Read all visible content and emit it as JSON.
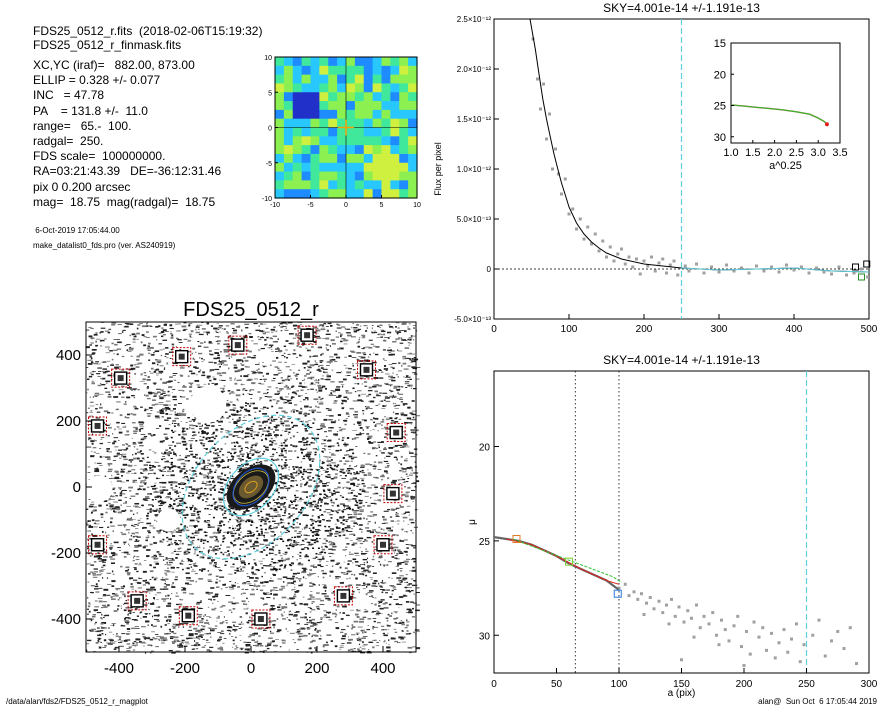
{
  "header": {
    "file_line": "FDS25_0512_r.fits  (2018-02-06T15:19:32)",
    "mask_line": "FDS25_0512_r_finmask.fits",
    "params": [
      "XC,YC (iraf)=   882.00, 873.00",
      "ELLIP = 0.328 +/- 0.077",
      "INC   = 47.78",
      "PA    = 131.8 +/-  11.0",
      "range=   65.-  100.",
      "radgal=  250.",
      "FDS scale=  100000000.",
      "RA=03:21:43.39   DE=-36:12:31.46",
      "pix 0 0.200 arcsec",
      "mag=  18.75  mag(radgal)=  18.75"
    ],
    "date": " 6-Oct-2019 17:05:44.00",
    "program": "make_datalist0_fds.pro (ver. AS240919)"
  },
  "footer": {
    "left": "/data/alan/fds2/FDS25_0512_r_magplot",
    "right": "alan@  Sun Oct  6 17:05:44 2019"
  },
  "colors": {
    "data_points": "#a0a0a0",
    "profile": "#000000",
    "cyan": "#5fd0e0",
    "red": "#e02020",
    "green": "#2ec02e",
    "marker": "#c00000"
  },
  "chart_data": [
    {
      "type": "heatmap",
      "xlim": [
        -10,
        10
      ],
      "ylim": [
        -10,
        10
      ],
      "xticks": [
        -10,
        -5,
        0,
        5,
        10
      ],
      "yticks": [
        -10,
        -5,
        0,
        5,
        10
      ],
      "palette": [
        "#2030c8",
        "#1e8cff",
        "#28c8ff",
        "#40e89c",
        "#8cf050",
        "#d0f040"
      ]
    },
    {
      "type": "scatter",
      "title": "FDS25_0512_r",
      "xlim": [
        -500,
        500
      ],
      "ylim": [
        -500,
        500
      ],
      "xticks": [
        -400,
        -200,
        0,
        200,
        400
      ],
      "yticks": [
        -400,
        -200,
        0,
        200,
        400
      ],
      "ellipses": [
        {
          "a": 250,
          "b": 168,
          "pa": 131.8,
          "color": "#5fd0e0",
          "style": "dashed"
        },
        {
          "a": 100,
          "b": 67,
          "pa": 131.8,
          "color": "#5fd0e0",
          "style": "solid"
        },
        {
          "a": 65,
          "b": 44,
          "pa": 131.8,
          "color": "#2050c0",
          "style": "solid"
        }
      ],
      "star_markers": [
        {
          "x": -210,
          "y": 395
        },
        {
          "x": -40,
          "y": 430
        },
        {
          "x": 170,
          "y": 460
        },
        {
          "x": -395,
          "y": 330
        },
        {
          "x": 350,
          "y": 355
        },
        {
          "x": -465,
          "y": 185
        },
        {
          "x": 440,
          "y": 165
        },
        {
          "x": 430,
          "y": -20
        },
        {
          "x": -465,
          "y": -175
        },
        {
          "x": 400,
          "y": -175
        },
        {
          "x": -345,
          "y": -345
        },
        {
          "x": 280,
          "y": -330
        },
        {
          "x": -190,
          "y": -390
        },
        {
          "x": 30,
          "y": -400
        }
      ],
      "masked_holes": [
        {
          "x": -130,
          "y": 250,
          "r": 55
        },
        {
          "x": -460,
          "y": -5,
          "r": 40
        },
        {
          "x": -250,
          "y": -100,
          "r": 35
        }
      ]
    },
    {
      "type": "scatter",
      "title": "SKY=4.001e-14 +/-1.191e-13",
      "ylabel": "Flux per pixel",
      "xlim": [
        0,
        500
      ],
      "ylim": [
        -5e-13,
        2.5e-12
      ],
      "xticks": [
        0,
        100,
        200,
        300,
        400,
        500
      ],
      "yticks": [
        {
          "value": -5e-13,
          "label": "-5.0×10⁻¹³"
        },
        {
          "value": 0,
          "label": "0"
        },
        {
          "value": 5e-13,
          "label": "5.0×10⁻¹³"
        },
        {
          "value": 1e-12,
          "label": "1.0×10⁻¹²"
        },
        {
          "value": 1.5e-12,
          "label": "1.5×10⁻¹²"
        },
        {
          "value": 2e-12,
          "label": "2.0×10⁻¹²"
        },
        {
          "value": 2.5e-12,
          "label": "2.5×10⁻¹²"
        }
      ],
      "vline_x": 250,
      "profile": [
        [
          48,
          2.5e-12
        ],
        [
          55,
          2.2e-12
        ],
        [
          60,
          1.95e-12
        ],
        [
          65,
          1.7e-12
        ],
        [
          70,
          1.5e-12
        ],
        [
          75,
          1.32e-12
        ],
        [
          80,
          1.15e-12
        ],
        [
          85,
          1e-12
        ],
        [
          90,
          8.6e-13
        ],
        [
          95,
          7.4e-13
        ],
        [
          100,
          6.2e-13
        ],
        [
          110,
          4.6e-13
        ],
        [
          120,
          3.5e-13
        ],
        [
          130,
          2.7e-13
        ],
        [
          140,
          2.1e-13
        ],
        [
          150,
          1.6e-13
        ],
        [
          170,
          1e-13
        ],
        [
          200,
          5e-14
        ],
        [
          250,
          1e-14
        ],
        [
          300,
          -1e-14
        ],
        [
          350,
          0.0
        ],
        [
          400,
          1e-14
        ],
        [
          450,
          -2e-14
        ],
        [
          500,
          -3e-14
        ]
      ],
      "scatter": [
        [
          52,
          2.3e-12
        ],
        [
          58,
          1.9e-12
        ],
        [
          62,
          1.6e-12
        ],
        [
          66,
          1.85e-12
        ],
        [
          70,
          1.3e-12
        ],
        [
          74,
          1.55e-12
        ],
        [
          78,
          1e-12
        ],
        [
          82,
          1.2e-12
        ],
        [
          86,
          9.5e-13
        ],
        [
          90,
          7.5e-13
        ],
        [
          95,
          9e-13
        ],
        [
          100,
          5.5e-13
        ],
        [
          105,
          6e-13
        ],
        [
          110,
          4e-13
        ],
        [
          115,
          5e-13
        ],
        [
          120,
          3e-13
        ],
        [
          125,
          4.2e-13
        ],
        [
          130,
          2.5e-13
        ],
        [
          135,
          3.5e-13
        ],
        [
          140,
          1.8e-13
        ],
        [
          145,
          2.8e-13
        ],
        [
          150,
          1.2e-13
        ],
        [
          155,
          2.2e-13
        ],
        [
          160,
          8e-14
        ],
        [
          165,
          1.5e-13
        ],
        [
          170,
          2e-13
        ],
        [
          175,
          5e-14
        ],
        [
          180,
          1.2e-13
        ],
        [
          185,
          2e-14
        ],
        [
          190,
          1e-13
        ],
        [
          195,
          -5e-14
        ],
        [
          200,
          8e-14
        ],
        [
          205,
          3e-14
        ],
        [
          210,
          1.2e-13
        ],
        [
          215,
          -2e-14
        ],
        [
          220,
          6e-14
        ],
        [
          225,
          1e-13
        ],
        [
          230,
          -4e-14
        ],
        [
          235,
          4e-14
        ],
        [
          240,
          8e-14
        ],
        [
          245,
          -6e-14
        ],
        [
          255,
          3e-14
        ],
        [
          260,
          -2e-14
        ],
        [
          270,
          5e-14
        ],
        [
          280,
          -4e-14
        ],
        [
          290,
          2e-14
        ],
        [
          300,
          -3e-14
        ],
        [
          310,
          4e-14
        ],
        [
          320,
          -2e-14
        ],
        [
          330,
          1e-14
        ],
        [
          340,
          -4e-14
        ],
        [
          350,
          3e-14
        ],
        [
          360,
          -2e-14
        ],
        [
          370,
          2e-14
        ],
        [
          380,
          -3e-14
        ],
        [
          390,
          4e-14
        ],
        [
          400,
          -1e-14
        ],
        [
          410,
          2e-14
        ],
        [
          420,
          -4e-14
        ],
        [
          430,
          1e-14
        ],
        [
          440,
          -3e-14
        ],
        [
          450,
          -5e-14
        ],
        [
          460,
          2e-14
        ],
        [
          470,
          -6e-14
        ],
        [
          480,
          -4e-14
        ],
        [
          490,
          0.0
        ],
        [
          498,
          -8e-14
        ]
      ],
      "inset": {
        "xlabel": "a^0.25",
        "xlim": [
          1.0,
          3.5
        ],
        "ylim": [
          15,
          31
        ],
        "xticks": [
          1.0,
          1.5,
          2.0,
          2.5,
          3.0,
          3.5
        ],
        "yticks": [
          15,
          20,
          25,
          30
        ],
        "profile": [
          [
            1.0,
            24.9
          ],
          [
            1.3,
            25.1
          ],
          [
            1.6,
            25.3
          ],
          [
            1.9,
            25.5
          ],
          [
            2.2,
            25.7
          ],
          [
            2.5,
            26.0
          ],
          [
            2.8,
            26.4
          ],
          [
            3.0,
            27.0
          ],
          [
            3.15,
            27.6
          ],
          [
            3.22,
            28.3
          ]
        ]
      }
    },
    {
      "type": "scatter",
      "title": "SKY=4.001e-14 +/-1.191e-13",
      "xlabel": "a (pix)",
      "ylabel": "μ",
      "xlim": [
        0,
        300
      ],
      "ylim": [
        32,
        16
      ],
      "xticks": [
        0,
        50,
        100,
        150,
        200,
        250,
        300
      ],
      "yticks": [
        20,
        25,
        30
      ],
      "vlines_dotted": [
        65,
        100
      ],
      "vline_dashed": 250,
      "profile": [
        [
          0,
          24.8
        ],
        [
          10,
          24.9
        ],
        [
          20,
          25.0
        ],
        [
          30,
          25.2
        ],
        [
          40,
          25.5
        ],
        [
          50,
          25.8
        ],
        [
          60,
          26.2
        ],
        [
          70,
          26.5
        ],
        [
          80,
          26.8
        ],
        [
          90,
          27.1
        ],
        [
          100,
          27.6
        ]
      ],
      "scatter": [
        [
          100,
          27.5
        ],
        [
          105,
          27.3
        ],
        [
          108,
          27.9
        ],
        [
          112,
          27.7
        ],
        [
          115,
          28.1
        ],
        [
          118,
          27.8
        ],
        [
          122,
          28.3
        ],
        [
          125,
          28.0
        ],
        [
          128,
          28.6
        ],
        [
          132,
          28.2
        ],
        [
          135,
          28.8
        ],
        [
          138,
          28.4
        ],
        [
          142,
          28.1
        ],
        [
          145,
          29.0
        ],
        [
          148,
          28.5
        ],
        [
          152,
          29.3
        ],
        [
          155,
          28.7
        ],
        [
          158,
          29.1
        ],
        [
          162,
          28.4
        ],
        [
          165,
          29.6
        ],
        [
          168,
          29.0
        ],
        [
          172,
          29.4
        ],
        [
          175,
          28.8
        ],
        [
          178,
          30.0
        ],
        [
          182,
          29.2
        ],
        [
          185,
          29.7
        ],
        [
          188,
          30.3
        ],
        [
          192,
          29.5
        ],
        [
          195,
          29.0
        ],
        [
          198,
          30.6
        ],
        [
          202,
          29.8
        ],
        [
          205,
          31.0
        ],
        [
          208,
          29.3
        ],
        [
          212,
          30.1
        ],
        [
          215,
          29.6
        ],
        [
          218,
          30.8
        ],
        [
          222,
          29.9
        ],
        [
          225,
          31.2
        ],
        [
          228,
          30.4
        ],
        [
          232,
          29.7
        ],
        [
          235,
          30.9
        ],
        [
          238,
          30.2
        ],
        [
          242,
          29.4
        ],
        [
          245,
          31.4
        ],
        [
          248,
          30.5
        ],
        [
          255,
          30.0
        ],
        [
          260,
          29.2
        ],
        [
          265,
          31.1
        ],
        [
          270,
          30.3
        ],
        [
          275,
          29.8
        ],
        [
          280,
          30.7
        ],
        [
          285,
          29.6
        ],
        [
          290,
          31.5
        ],
        [
          150,
          31.3
        ],
        [
          200,
          31.6
        ],
        [
          120,
          28.9
        ],
        [
          140,
          29.4
        ],
        [
          160,
          30.1
        ],
        [
          180,
          30.5
        ]
      ],
      "red_profile": [
        [
          10,
          24.9
        ],
        [
          30,
          25.2
        ],
        [
          50,
          25.8
        ],
        [
          70,
          26.5
        ],
        [
          90,
          27.1
        ],
        [
          100,
          27.3
        ]
      ],
      "green_profile": [
        [
          15,
          24.9
        ],
        [
          35,
          25.4
        ],
        [
          55,
          25.9
        ],
        [
          75,
          26.4
        ],
        [
          95,
          26.9
        ],
        [
          102,
          27.2
        ]
      ],
      "marker_squares": [
        [
          18,
          24.9
        ],
        [
          60,
          26.1
        ],
        [
          99,
          27.8
        ]
      ]
    }
  ]
}
